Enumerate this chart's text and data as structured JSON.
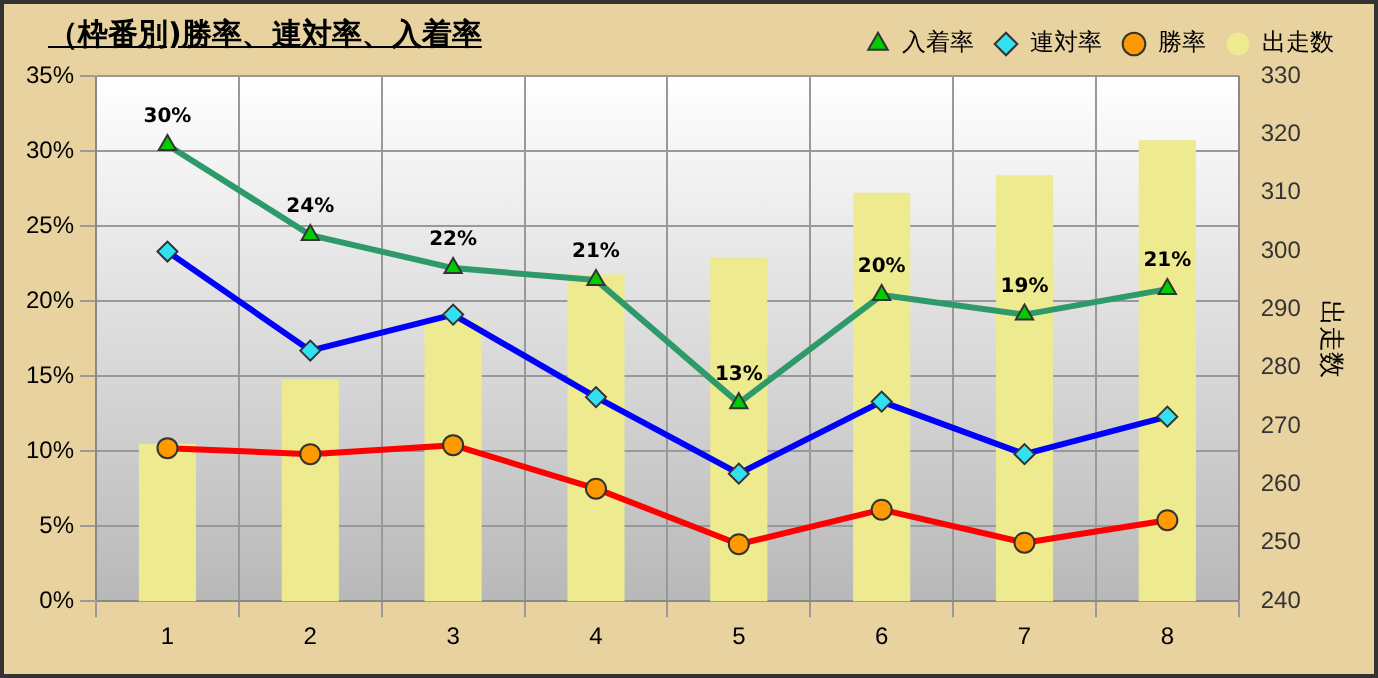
{
  "chart_data": {
    "type": "bar",
    "title": "（枠番別)勝率、連対率、入着率",
    "categories": [
      "1",
      "2",
      "3",
      "4",
      "5",
      "6",
      "7",
      "8"
    ],
    "series": [
      {
        "name": "出走数",
        "axis": "y2",
        "color": "#eeea90",
        "values": [
          267,
          278,
          288,
          296,
          299,
          310,
          313,
          319
        ]
      },
      {
        "name": "入着率",
        "type": "line",
        "marker": "triangle",
        "color": "#2e9a6a",
        "values": [
          30.4,
          24.4,
          22.2,
          21.4,
          13.2,
          20.4,
          19.1,
          20.8
        ],
        "value_labels": [
          "30%",
          "24%",
          "22%",
          "21%",
          "13%",
          "20%",
          "19%",
          "21%"
        ]
      },
      {
        "name": "連対率",
        "type": "line",
        "marker": "diamond",
        "color": "#0000ff",
        "values": [
          23.3,
          16.7,
          19.1,
          13.6,
          8.5,
          13.3,
          9.8,
          12.3
        ]
      },
      {
        "name": "勝率",
        "type": "line",
        "marker": "circle",
        "color": "#ff0000",
        "values": [
          10.2,
          9.8,
          10.4,
          7.5,
          3.8,
          6.1,
          3.9,
          5.4
        ]
      }
    ],
    "ylim": [
      0,
      35
    ],
    "yticks": [
      {
        "value": 0,
        "label": "0%"
      },
      {
        "value": 5,
        "label": "5%"
      },
      {
        "value": 10,
        "label": "10%"
      },
      {
        "value": 15,
        "label": "15%"
      },
      {
        "value": 20,
        "label": "20%"
      },
      {
        "value": 25,
        "label": "25%"
      },
      {
        "value": 30,
        "label": "30%"
      },
      {
        "value": 35,
        "label": "35%"
      }
    ],
    "y2lim": [
      240,
      330
    ],
    "y2ticks": [
      240,
      250,
      260,
      270,
      280,
      290,
      300,
      310,
      320,
      330
    ],
    "y2label": "出走数",
    "grid": true,
    "legend": "top right"
  }
}
